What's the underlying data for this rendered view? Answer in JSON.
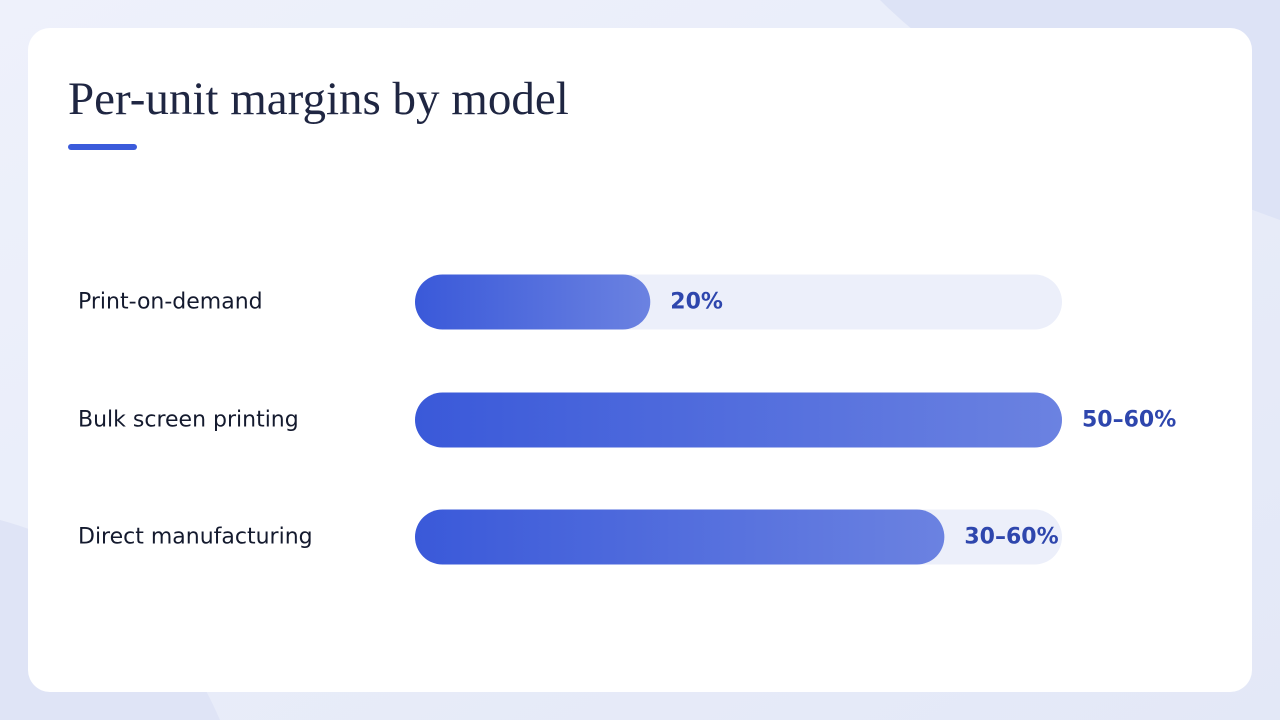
{
  "chart_data": {
    "type": "bar",
    "orientation": "horizontal",
    "title": "Per-unit margins by model",
    "categories": [
      "Print-on-demand",
      "Bulk screen printing",
      "Direct manufacturing"
    ],
    "values": [
      20,
      55,
      45
    ],
    "value_labels": [
      "20%",
      "50–60%",
      "30–60%"
    ],
    "xlim": [
      0,
      55
    ],
    "colors": [
      "#3a59d9",
      "#6b82e1"
    ],
    "track_color": "#eceffa"
  }
}
